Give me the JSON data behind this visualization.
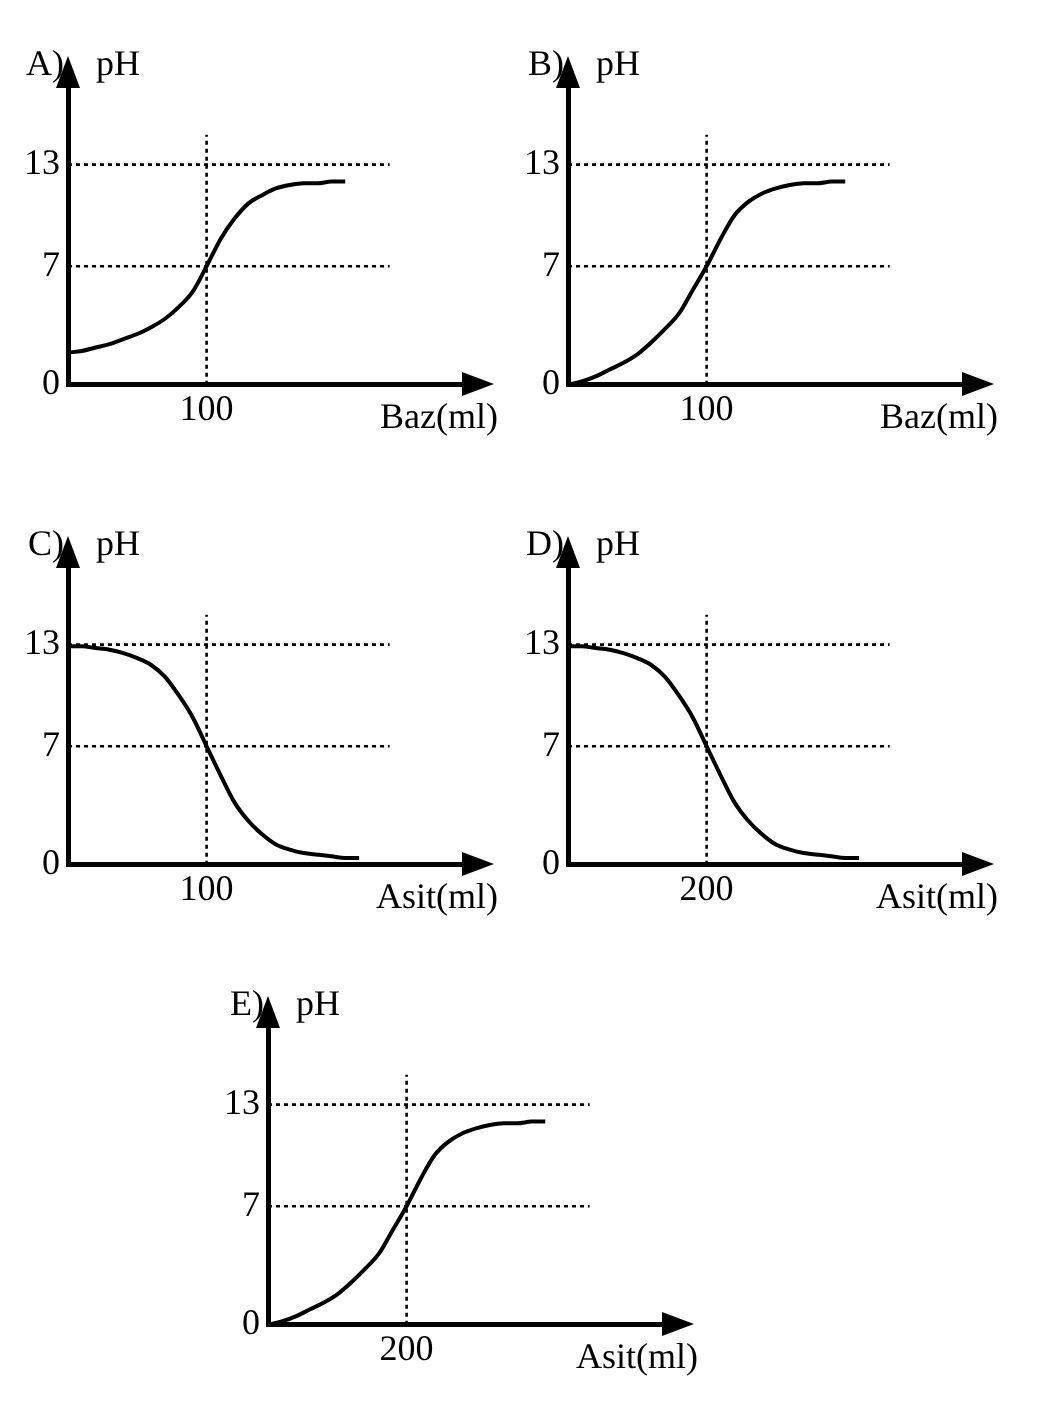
{
  "chart_data": [
    {
      "type": "line",
      "title": "A)",
      "ylabel": "pH",
      "xlabel": "Baz(ml)",
      "color": "#000000",
      "marker": "none",
      "ylim": [
        0,
        18
      ],
      "yticks": [
        0,
        7,
        13
      ],
      "categories": [
        null,
        null,
        null,
        null,
        null,
        null,
        null,
        null,
        null,
        null,
        "100",
        null,
        null,
        null,
        null,
        null,
        null,
        null,
        null,
        null,
        null,
        null,
        null,
        null,
        null,
        null,
        null,
        null,
        null,
        null
      ],
      "values": [
        1.9,
        2.0,
        2.2,
        2.4,
        2.7,
        3.0,
        3.4,
        3.9,
        4.6,
        5.5,
        7,
        8.6,
        9.8,
        10.7,
        11.2,
        11.6,
        11.8,
        11.9,
        11.9,
        12,
        12,
        null,
        null,
        null,
        null,
        null,
        null,
        null,
        null,
        null
      ],
      "ref_lines": [
        {
          "axis": "y",
          "value": 7,
          "line_style": "dotted"
        },
        {
          "axis": "y",
          "value": 13,
          "line_style": "dotted"
        },
        {
          "axis": "x",
          "value": "100",
          "line_style": "dotted"
        }
      ]
    },
    {
      "type": "line",
      "title": "B)",
      "ylabel": "pH",
      "xlabel": "Baz(ml)",
      "color": "#000000",
      "marker": "none",
      "ylim": [
        0,
        18
      ],
      "yticks": [
        0,
        7,
        13
      ],
      "categories": [
        null,
        null,
        null,
        null,
        null,
        null,
        null,
        null,
        null,
        null,
        "100",
        null,
        null,
        null,
        null,
        null,
        null,
        null,
        null,
        null,
        null,
        null,
        null,
        null,
        null,
        null,
        null,
        null,
        null,
        null
      ],
      "values": [
        0,
        0.2,
        0.5,
        0.9,
        1.3,
        1.8,
        2.5,
        3.3,
        4.2,
        5.6,
        7,
        8.6,
        10,
        10.8,
        11.3,
        11.6,
        11.8,
        11.9,
        11.9,
        12,
        12,
        null,
        null,
        null,
        null,
        null,
        null,
        null,
        null,
        null
      ],
      "ref_lines": [
        {
          "axis": "y",
          "value": 7,
          "line_style": "dotted"
        },
        {
          "axis": "y",
          "value": 13,
          "line_style": "dotted"
        },
        {
          "axis": "x",
          "value": "100",
          "line_style": "dotted"
        }
      ]
    },
    {
      "type": "line",
      "title": "C)",
      "ylabel": "pH",
      "xlabel": "Asit(ml)",
      "color": "#000000",
      "marker": "none",
      "ylim": [
        0,
        18
      ],
      "yticks": [
        0,
        7,
        13
      ],
      "categories": [
        null,
        null,
        null,
        null,
        null,
        null,
        null,
        null,
        null,
        null,
        "100",
        null,
        null,
        null,
        null,
        null,
        null,
        null,
        null,
        null,
        null,
        null,
        null,
        null,
        null,
        null,
        null,
        null,
        null,
        null
      ],
      "values": [
        12.9,
        12.9,
        12.8,
        12.7,
        12.5,
        12.2,
        11.8,
        11.1,
        10,
        8.7,
        7,
        5.3,
        3.7,
        2.6,
        1.8,
        1.2,
        0.9,
        0.7,
        0.6,
        0.5,
        0.4,
        0.4,
        null,
        null,
        null,
        null,
        null,
        null,
        null,
        null
      ],
      "ref_lines": [
        {
          "axis": "y",
          "value": 7,
          "line_style": "dotted"
        },
        {
          "axis": "y",
          "value": 13,
          "line_style": "dotted"
        },
        {
          "axis": "x",
          "value": "100",
          "line_style": "dotted"
        }
      ]
    },
    {
      "type": "line",
      "title": "D)",
      "ylabel": "pH",
      "xlabel": "Asit(ml)",
      "color": "#000000",
      "marker": "none",
      "ylim": [
        0,
        18
      ],
      "yticks": [
        0,
        7,
        13
      ],
      "categories": [
        null,
        null,
        null,
        null,
        null,
        null,
        null,
        null,
        null,
        null,
        "200",
        null,
        null,
        null,
        null,
        null,
        null,
        null,
        null,
        null,
        null,
        null,
        null,
        null,
        null,
        null,
        null,
        null,
        null,
        null
      ],
      "values": [
        12.9,
        12.9,
        12.8,
        12.7,
        12.5,
        12.2,
        11.8,
        11.1,
        10,
        8.7,
        7,
        5.3,
        3.7,
        2.6,
        1.8,
        1.2,
        0.9,
        0.7,
        0.6,
        0.5,
        0.4,
        0.4,
        null,
        null,
        null,
        null,
        null,
        null,
        null,
        null
      ],
      "ref_lines": [
        {
          "axis": "y",
          "value": 7,
          "line_style": "dotted"
        },
        {
          "axis": "y",
          "value": 13,
          "line_style": "dotted"
        },
        {
          "axis": "x",
          "value": "200",
          "line_style": "dotted"
        }
      ]
    },
    {
      "type": "line",
      "title": "E)",
      "ylabel": "pH",
      "xlabel": "Asit(ml)",
      "color": "#000000",
      "marker": "none",
      "ylim": [
        0,
        18
      ],
      "yticks": [
        0,
        7,
        13
      ],
      "categories": [
        null,
        null,
        null,
        null,
        null,
        null,
        null,
        null,
        null,
        null,
        "200",
        null,
        null,
        null,
        null,
        null,
        null,
        null,
        null,
        null,
        null,
        null,
        null,
        null,
        null,
        null,
        null,
        null,
        null,
        null
      ],
      "values": [
        0,
        0.2,
        0.5,
        0.9,
        1.3,
        1.8,
        2.5,
        3.3,
        4.2,
        5.6,
        7,
        8.6,
        10,
        10.8,
        11.3,
        11.6,
        11.8,
        11.9,
        11.9,
        12,
        12,
        null,
        null,
        null,
        null,
        null,
        null,
        null,
        null,
        null
      ],
      "ref_lines": [
        {
          "axis": "y",
          "value": 7,
          "line_style": "dotted"
        },
        {
          "axis": "y",
          "value": 13,
          "line_style": "dotted"
        },
        {
          "axis": "x",
          "value": "200",
          "line_style": "dotted"
        }
      ]
    }
  ]
}
